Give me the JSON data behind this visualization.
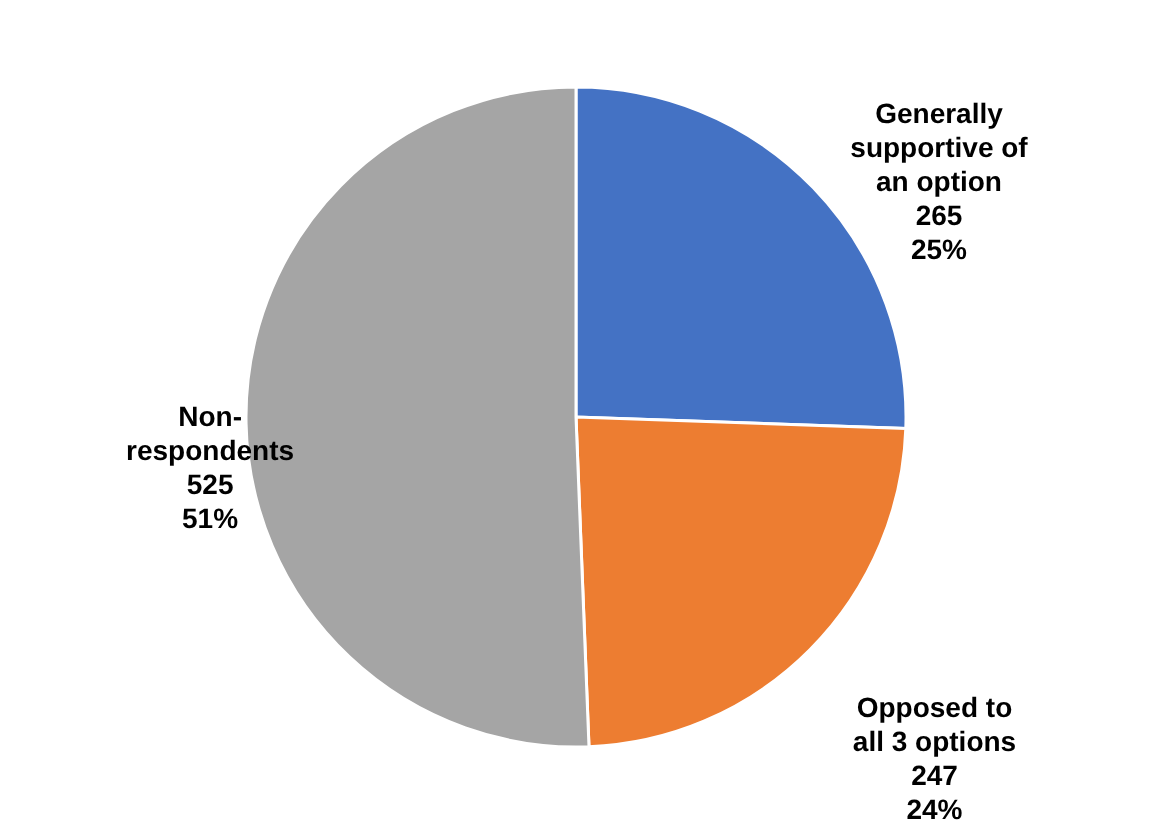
{
  "chart_data": {
    "type": "pie",
    "categories": [
      "Generally supportive of an option",
      "Opposed to all 3 options",
      "Non-respondents"
    ],
    "values": [
      265,
      247,
      525
    ],
    "colors": [
      "#4472c4",
      "#ed7d31",
      "#a5a5a5"
    ],
    "value_labels": [
      "265\n25%",
      "247\n24%",
      "525\n51%"
    ]
  }
}
